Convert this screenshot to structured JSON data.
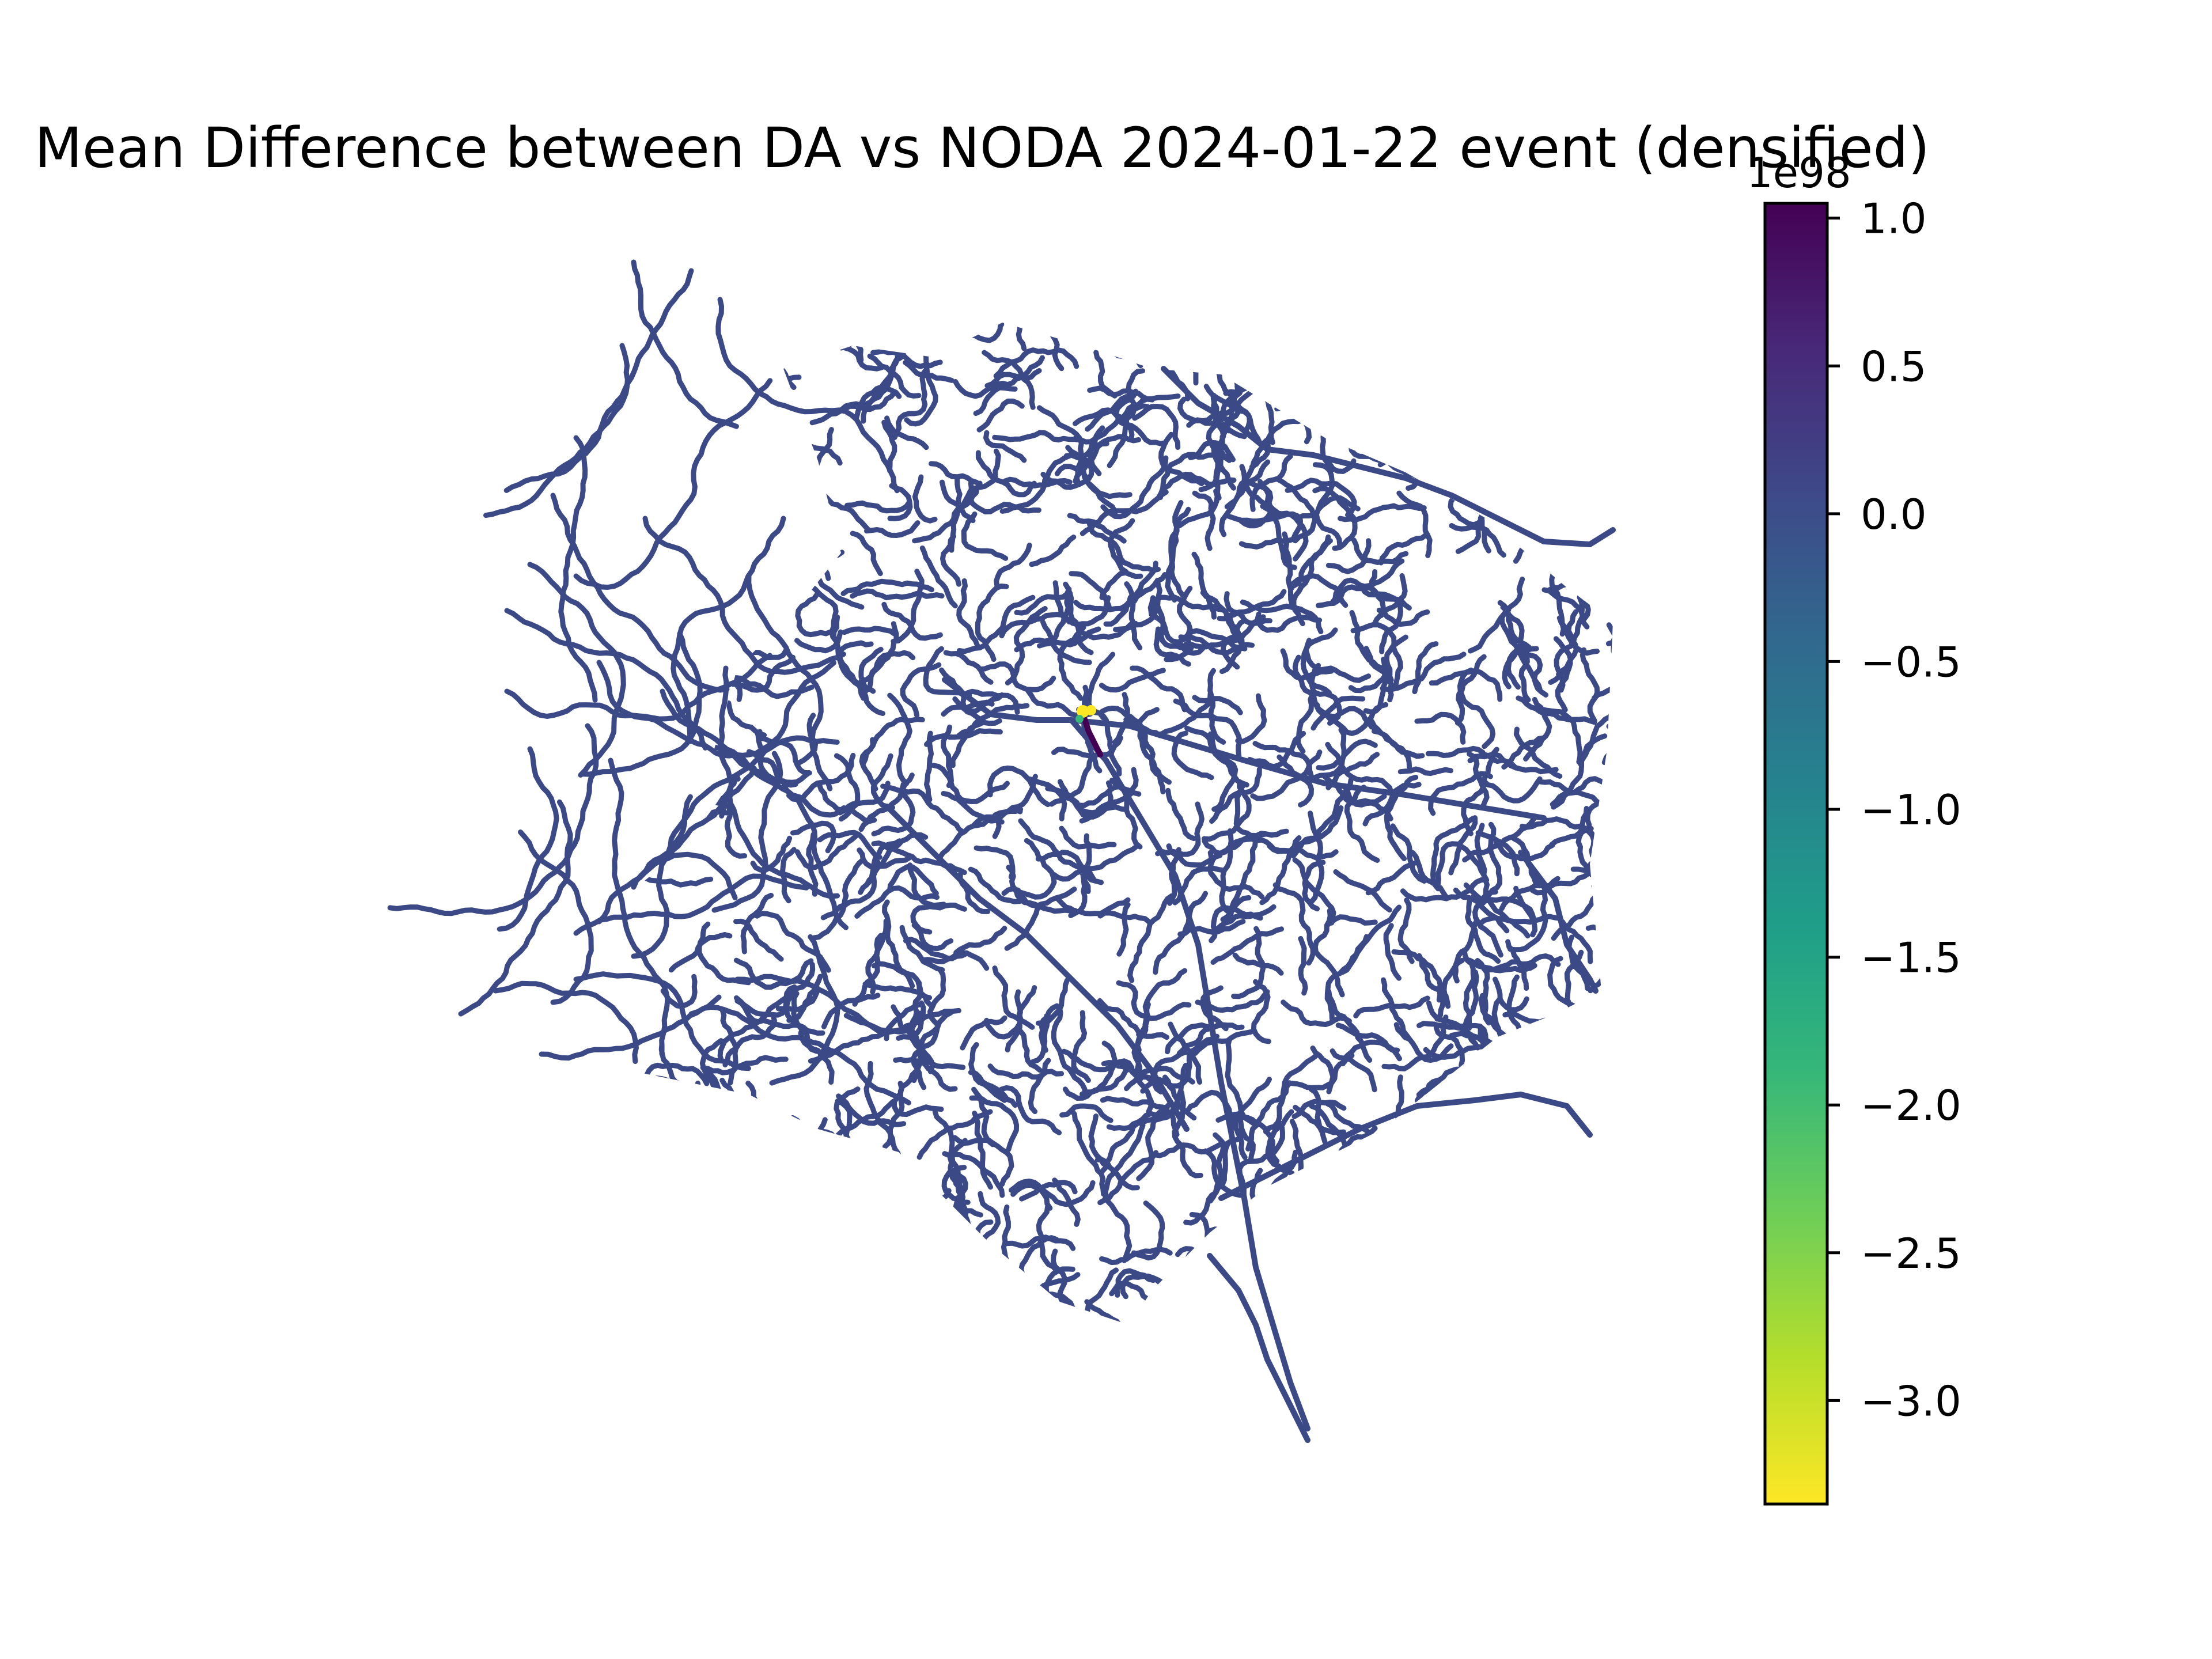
{
  "title": "Mean Difference between DA vs NODA 2024-01-22 event (densified)",
  "chart_data": {
    "type": "map",
    "title": "Mean Difference between DA vs NODA 2024-01-22 event (densified)",
    "colormap": "viridis_r",
    "colorbar": {
      "offset_label": "1e98",
      "range": [
        -3.35,
        1.05
      ],
      "ticks": [
        1.0,
        0.5,
        0.0,
        -0.5,
        -1.0,
        -1.5,
        -2.0,
        -2.5,
        -3.0
      ],
      "tick_labels": [
        "1.0",
        "0.5",
        "0.0",
        "−0.5",
        "−1.0",
        "−1.5",
        "−2.0",
        "−2.5",
        "−3.0"
      ],
      "stops": [
        "#440154",
        "#482878",
        "#3e4989",
        "#31688e",
        "#26828e",
        "#1f9e89",
        "#35b779",
        "#6ece58",
        "#b5de2b",
        "#fde725"
      ]
    },
    "river_color": "#3b4a87",
    "anomaly_colors": [
      "#fde725",
      "#440154",
      "#35b779"
    ]
  }
}
